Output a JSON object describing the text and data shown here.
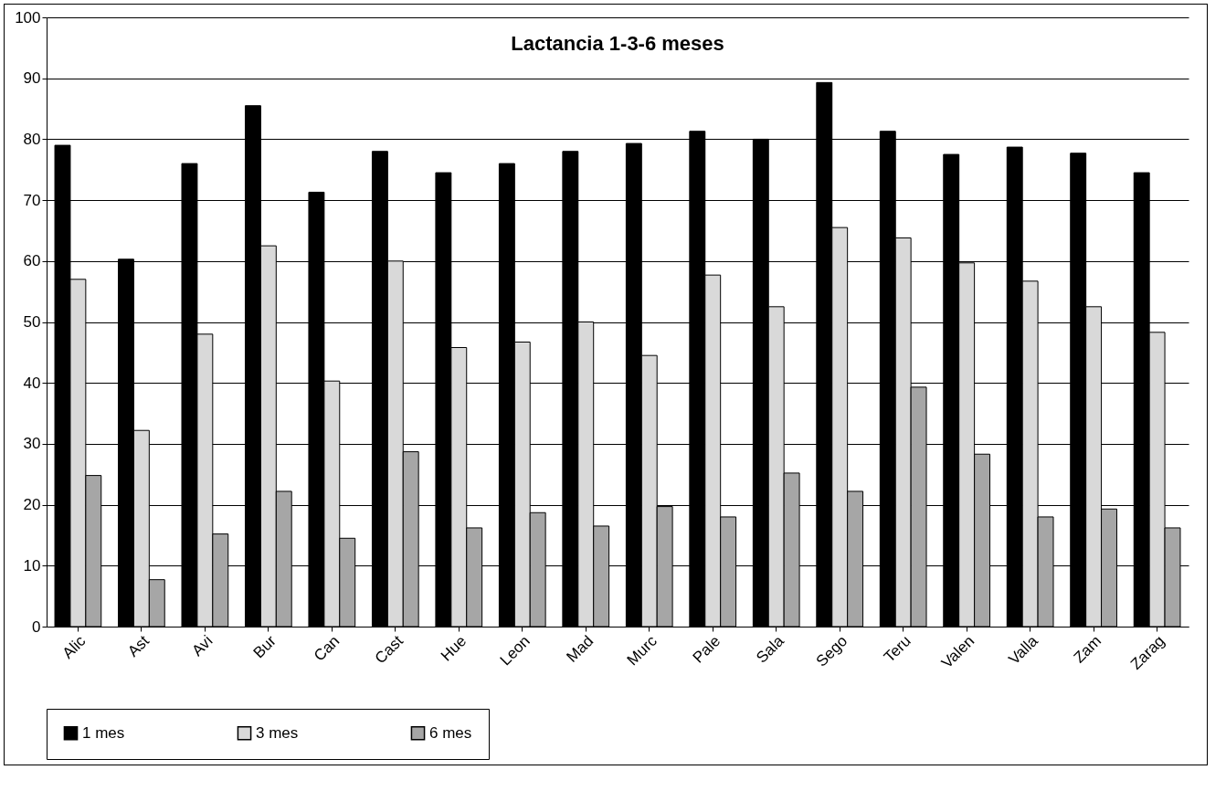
{
  "chart_data": {
    "type": "bar",
    "title": "Lactancia 1-3-6 meses",
    "categories": [
      "Alic",
      "Ast",
      "Avi",
      "Bur",
      "Can",
      "Cast",
      "Hue",
      "Leon",
      "Mad",
      "Murc",
      "Pale",
      "Sala",
      "Sego",
      "Teru",
      "Valen",
      "Valla",
      "Zam",
      "Zarag"
    ],
    "series": [
      {
        "name": "1 mes",
        "color": "#000000",
        "values": [
          79,
          60.3,
          76,
          85.5,
          71.3,
          78,
          74.5,
          76,
          78,
          79.3,
          81.3,
          80,
          89.3,
          81.3,
          77.5,
          78.7,
          77.7,
          74.5
        ]
      },
      {
        "name": "3 mes",
        "color": "#d9d9d9",
        "values": [
          57,
          32.2,
          48,
          62.5,
          40.3,
          60,
          45.8,
          46.7,
          50,
          44.5,
          57.7,
          52.5,
          65.5,
          63.8,
          59.7,
          56.7,
          52.5,
          48.3
        ]
      },
      {
        "name": "6 mes",
        "color": "#a6a6a6",
        "values": [
          24.8,
          7.7,
          15.2,
          22.2,
          14.5,
          28.7,
          16.2,
          18.7,
          16.5,
          19.7,
          18,
          25.2,
          22.2,
          39.3,
          28.3,
          18,
          19.3,
          16.2
        ]
      }
    ],
    "ylim": [
      0,
      100
    ],
    "yticks": [
      0,
      10,
      20,
      30,
      40,
      50,
      60,
      70,
      80,
      90,
      100
    ],
    "grid": "y",
    "legend": "bottom"
  }
}
